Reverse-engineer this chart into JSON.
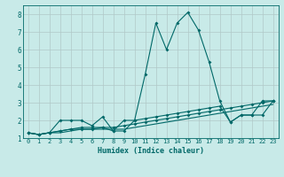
{
  "title": "",
  "xlabel": "Humidex (Indice chaleur)",
  "ylabel": "",
  "background_color": "#c8eae8",
  "grid_color": "#b0c8c8",
  "line_color": "#006868",
  "xlim": [
    -0.5,
    23.5
  ],
  "ylim": [
    1.0,
    8.5
  ],
  "xticks": [
    0,
    1,
    2,
    3,
    4,
    5,
    6,
    7,
    8,
    9,
    10,
    11,
    12,
    13,
    14,
    15,
    16,
    17,
    18,
    19,
    20,
    21,
    22,
    23
  ],
  "yticks": [
    1,
    2,
    3,
    4,
    5,
    6,
    7,
    8
  ],
  "series1_x": [
    0,
    1,
    2,
    3,
    4,
    5,
    6,
    7,
    8,
    9,
    10,
    11,
    12,
    13,
    14,
    15,
    16,
    17,
    18,
    19,
    20,
    21,
    22,
    23
  ],
  "series1_y": [
    1.3,
    1.2,
    1.3,
    2.0,
    2.0,
    2.0,
    1.7,
    2.2,
    1.4,
    1.4,
    2.0,
    4.6,
    7.5,
    6.0,
    7.5,
    8.1,
    7.1,
    5.3,
    3.1,
    1.9,
    2.3,
    2.3,
    3.1,
    3.1
  ],
  "series2_x": [
    0,
    1,
    2,
    3,
    4,
    5,
    6,
    7,
    8,
    9,
    10,
    11,
    12,
    13,
    14,
    15,
    16,
    17,
    18,
    19,
    20,
    21,
    22,
    23
  ],
  "series2_y": [
    1.3,
    1.2,
    1.3,
    1.4,
    1.5,
    1.6,
    1.6,
    1.6,
    1.4,
    2.0,
    2.0,
    2.1,
    2.2,
    2.3,
    2.4,
    2.5,
    2.6,
    2.7,
    2.8,
    1.9,
    2.3,
    2.3,
    2.3,
    3.1
  ],
  "series3_x": [
    0,
    1,
    2,
    3,
    4,
    5,
    6,
    7,
    8,
    9,
    10,
    11,
    12,
    13,
    14,
    15,
    16,
    17,
    18,
    19,
    20,
    21,
    22,
    23
  ],
  "series3_y": [
    1.3,
    1.2,
    1.3,
    1.4,
    1.5,
    1.5,
    1.5,
    1.6,
    1.6,
    1.7,
    1.8,
    1.9,
    2.0,
    2.1,
    2.2,
    2.3,
    2.4,
    2.5,
    2.6,
    2.7,
    2.8,
    2.9,
    3.0,
    3.1
  ],
  "series4_x": [
    0,
    1,
    2,
    3,
    4,
    5,
    6,
    7,
    8,
    9,
    10,
    11,
    12,
    13,
    14,
    15,
    16,
    17,
    18,
    19,
    20,
    21,
    22,
    23
  ],
  "series4_y": [
    1.3,
    1.2,
    1.3,
    1.3,
    1.4,
    1.5,
    1.5,
    1.5,
    1.5,
    1.5,
    1.6,
    1.7,
    1.8,
    1.9,
    2.0,
    2.1,
    2.2,
    2.3,
    2.4,
    2.5,
    2.6,
    2.7,
    2.8,
    2.9
  ]
}
